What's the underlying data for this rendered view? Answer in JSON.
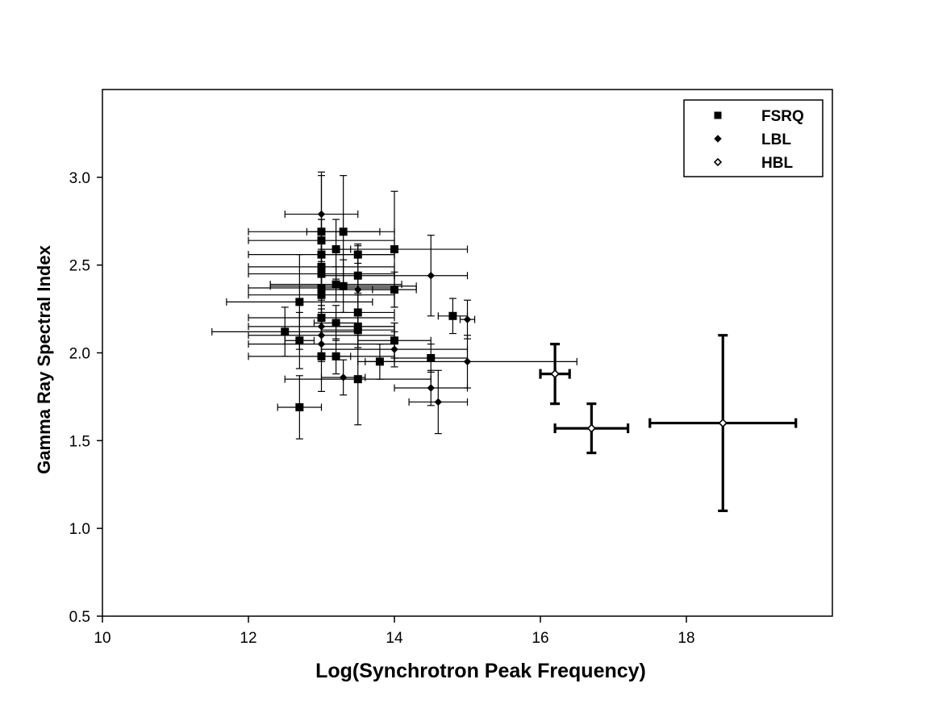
{
  "chart_data": {
    "type": "scatter",
    "title": "",
    "xlabel": "Log(Synchrotron Peak Frequency)",
    "ylabel": "Gamma Ray Spectral Index",
    "xlim": [
      10,
      20
    ],
    "ylim": [
      0.5,
      3.5
    ],
    "x_ticks": [
      "10",
      "12",
      "14",
      "16",
      "18"
    ],
    "y_ticks": [
      "0.5",
      "1.0",
      "1.5",
      "2.0",
      "2.5",
      "3.0"
    ],
    "grid": false,
    "legend_position": "top-right",
    "series": [
      {
        "name": "FSRQ",
        "marker": "filled-square",
        "points": [
          {
            "x": 13.3,
            "y": 2.69,
            "xerr": 0.5,
            "yerr": 0.32
          },
          {
            "x": 13.0,
            "y": 2.69,
            "xerr": 1.0,
            "yerr": 0.32
          },
          {
            "x": 13.0,
            "y": 2.64,
            "xerr": 1.0,
            "yerr": 0.12
          },
          {
            "x": 13.2,
            "y": 2.59,
            "xerr": 0.2,
            "yerr": 0.17
          },
          {
            "x": 14.0,
            "y": 2.59,
            "xerr": 1.0,
            "yerr": 0.33
          },
          {
            "x": 13.0,
            "y": 2.56,
            "xerr": 1.0,
            "yerr": 0.2
          },
          {
            "x": 13.5,
            "y": 2.56,
            "xerr": 0.5,
            "yerr": 0.05
          },
          {
            "x": 13.0,
            "y": 2.49,
            "xerr": 1.0,
            "yerr": 0.1
          },
          {
            "x": 13.0,
            "y": 2.45,
            "xerr": 1.0,
            "yerr": 0.1
          },
          {
            "x": 13.5,
            "y": 2.44,
            "xerr": 0.5,
            "yerr": 0.1
          },
          {
            "x": 13.2,
            "y": 2.39,
            "xerr": 0.9,
            "yerr": 0.1
          },
          {
            "x": 13.3,
            "y": 2.38,
            "xerr": 1.0,
            "yerr": 0.15
          },
          {
            "x": 13.0,
            "y": 2.37,
            "xerr": 1.0,
            "yerr": 0.1
          },
          {
            "x": 14.0,
            "y": 2.36,
            "xerr": 0.3,
            "yerr": 0.1
          },
          {
            "x": 13.0,
            "y": 2.33,
            "xerr": 1.0,
            "yerr": 0.1
          },
          {
            "x": 12.7,
            "y": 2.29,
            "xerr": 1.0,
            "yerr": 0.27
          },
          {
            "x": 13.5,
            "y": 2.23,
            "xerr": 0.5,
            "yerr": 0.1
          },
          {
            "x": 14.8,
            "y": 2.21,
            "xerr": 0.2,
            "yerr": 0.1
          },
          {
            "x": 13.0,
            "y": 2.2,
            "xerr": 1.0,
            "yerr": 0.1
          },
          {
            "x": 13.2,
            "y": 2.17,
            "xerr": 0.3,
            "yerr": 0.1
          },
          {
            "x": 13.5,
            "y": 2.15,
            "xerr": 0.5,
            "yerr": 0.1
          },
          {
            "x": 13.5,
            "y": 2.13,
            "xerr": 0.5,
            "yerr": 0.1
          },
          {
            "x": 12.5,
            "y": 2.12,
            "xerr": 1.0,
            "yerr": 0.14
          },
          {
            "x": 12.7,
            "y": 2.07,
            "xerr": 0.2,
            "yerr": 0.16
          },
          {
            "x": 14.0,
            "y": 2.07,
            "xerr": 0.5,
            "yerr": 0.1
          },
          {
            "x": 13.0,
            "y": 1.98,
            "xerr": 1.0,
            "yerr": 0.2
          },
          {
            "x": 13.2,
            "y": 1.98,
            "xerr": 0.2,
            "yerr": 0.1
          },
          {
            "x": 14.5,
            "y": 1.97,
            "xerr": 0.5,
            "yerr": 0.08
          },
          {
            "x": 13.8,
            "y": 1.95,
            "xerr": 0.2,
            "yerr": 0.1
          },
          {
            "x": 13.5,
            "y": 1.85,
            "xerr": 1.0,
            "yerr": 0.26
          },
          {
            "x": 12.7,
            "y": 1.69,
            "xerr": 0.3,
            "yerr": 0.18
          }
        ]
      },
      {
        "name": "LBL",
        "marker": "filled-diamond",
        "points": [
          {
            "x": 13.0,
            "y": 2.79,
            "xerr": 0.5,
            "yerr": 0.24
          },
          {
            "x": 14.5,
            "y": 2.44,
            "xerr": 0.5,
            "yerr": 0.23
          },
          {
            "x": 13.5,
            "y": 2.36,
            "xerr": 0.5,
            "yerr": 0.26
          },
          {
            "x": 15.0,
            "y": 2.19,
            "xerr": 0.1,
            "yerr": 0.11
          },
          {
            "x": 13.0,
            "y": 2.15,
            "xerr": 1.0,
            "yerr": 0.1
          },
          {
            "x": 13.0,
            "y": 2.1,
            "xerr": 1.0,
            "yerr": 0.1
          },
          {
            "x": 13.0,
            "y": 2.05,
            "xerr": 1.0,
            "yerr": 0.1
          },
          {
            "x": 14.0,
            "y": 2.02,
            "xerr": 1.0,
            "yerr": 0.1
          },
          {
            "x": 15.0,
            "y": 1.95,
            "xerr": 1.5,
            "yerr": 0.15
          },
          {
            "x": 13.3,
            "y": 1.86,
            "xerr": 0.3,
            "yerr": 0.1
          },
          {
            "x": 14.5,
            "y": 1.8,
            "xerr": 0.5,
            "yerr": 0.1
          },
          {
            "x": 14.6,
            "y": 1.72,
            "xerr": 0.4,
            "yerr": 0.18
          }
        ]
      },
      {
        "name": "HBL",
        "marker": "open-diamond",
        "points": [
          {
            "x": 16.2,
            "y": 1.88,
            "xerr": 0.2,
            "yerr": 0.17
          },
          {
            "x": 16.7,
            "y": 1.57,
            "xerr": 0.5,
            "yerr": 0.14
          },
          {
            "x": 18.5,
            "y": 1.6,
            "xerr": 1.0,
            "yerr": 0.5
          }
        ]
      }
    ]
  }
}
